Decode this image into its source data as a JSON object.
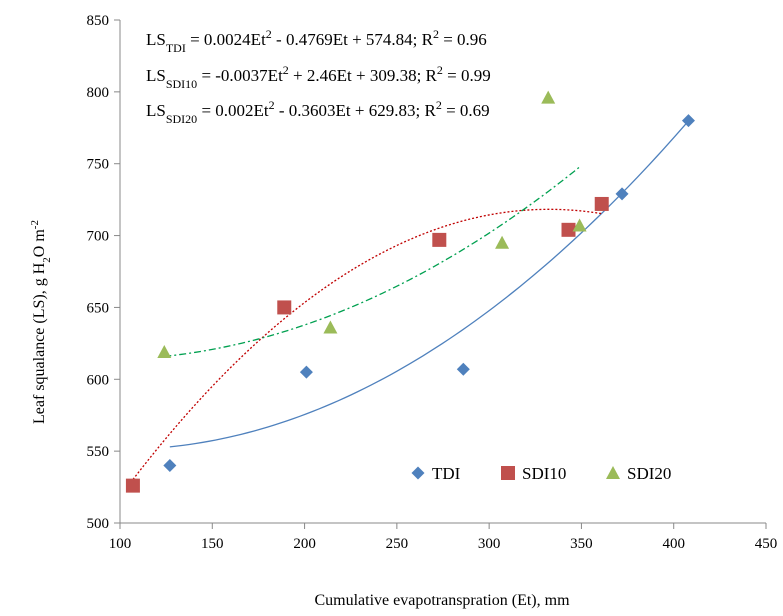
{
  "chart_data": {
    "type": "scatter",
    "xlabel": "Cumulative evapotranspration (Et), mm",
    "ylabel": "Leaf squalance (LS), g H2O m-2",
    "ylabel_parts": {
      "pre": "Leaf squalance (LS), g H",
      "sub": "2",
      "mid": "O m",
      "sup": "-2"
    },
    "xlim": [
      100,
      450
    ],
    "ylim": [
      500,
      850
    ],
    "xticks": [
      100,
      150,
      200,
      250,
      300,
      350,
      400,
      450
    ],
    "yticks": [
      500,
      550,
      600,
      650,
      700,
      750,
      800,
      850
    ],
    "grid": false,
    "legend_position": "bottom-right",
    "series": [
      {
        "name": "TDI",
        "marker": "diamond",
        "color": "#4F81BD",
        "x": [
          127,
          201,
          286,
          372,
          408
        ],
        "y": [
          540,
          605,
          607,
          729,
          780
        ],
        "trend": {
          "a": 0.0024,
          "b": -0.4769,
          "c": 574.84,
          "x_range": [
            127,
            408
          ],
          "style": "solid",
          "color": "#4F81BD"
        }
      },
      {
        "name": "SDI10",
        "marker": "square",
        "color": "#C0504D",
        "x": [
          107,
          189,
          273,
          343,
          361
        ],
        "y": [
          526,
          650,
          697,
          704,
          722
        ],
        "trend": {
          "a": -0.0037,
          "b": 2.46,
          "c": 309.38,
          "x_range": [
            107,
            361
          ],
          "style": "dotted",
          "color": "#C00000"
        }
      },
      {
        "name": "SDI20",
        "marker": "triangle",
        "color": "#9BBB59",
        "x": [
          124,
          214,
          307,
          332,
          349
        ],
        "y": [
          619,
          636,
          695,
          796,
          707
        ],
        "trend": {
          "a": 0.002,
          "b": -0.3603,
          "c": 629.83,
          "x_range": [
            124,
            349
          ],
          "style": "dashdot",
          "color": "#00A050"
        }
      }
    ],
    "equations": [
      {
        "pre": "LS",
        "sub": "TDI",
        "body": " = 0.0024Et",
        "sup": "2",
        "post": " - 0.4769Et + 574.84; R",
        "sup2": "2",
        "tail": " = 0.96"
      },
      {
        "pre": "LS",
        "sub": "SDI10",
        "body": " = -0.0037Et",
        "sup": "2",
        "post": " + 2.46Et + 309.38; R",
        "sup2": "2",
        "tail": " = 0.99"
      },
      {
        "pre": "LS",
        "sub": "SDI20",
        "body": " = 0.002Et",
        "sup": "2",
        "post": " - 0.3603Et + 629.83; R",
        "sup2": "2",
        "tail": " = 0.69"
      }
    ]
  }
}
